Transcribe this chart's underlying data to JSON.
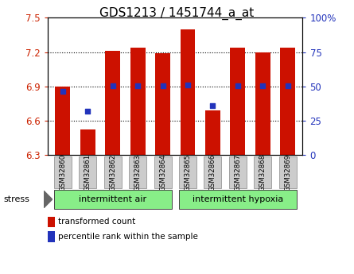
{
  "title": "GDS1213 / 1451744_a_at",
  "samples": [
    "GSM32860",
    "GSM32861",
    "GSM32862",
    "GSM32863",
    "GSM32864",
    "GSM32865",
    "GSM32866",
    "GSM32867",
    "GSM32868",
    "GSM32869"
  ],
  "bar_values": [
    6.9,
    6.52,
    7.21,
    7.24,
    7.19,
    7.4,
    6.69,
    7.24,
    7.2,
    7.24
  ],
  "percentile_values": [
    6.855,
    6.68,
    6.905,
    6.905,
    6.905,
    6.915,
    6.73,
    6.905,
    6.905,
    6.905
  ],
  "y_min": 6.3,
  "y_max": 7.5,
  "y_ticks": [
    6.3,
    6.6,
    6.9,
    7.2,
    7.5
  ],
  "right_y_ticks": [
    0,
    25,
    50,
    75,
    100
  ],
  "right_y_labels": [
    "0",
    "25",
    "50",
    "75",
    "100%"
  ],
  "bar_color": "#cc1100",
  "dot_color": "#2233bb",
  "group1_label": "intermittent air",
  "group2_label": "intermittent hypoxia",
  "group1_indices": [
    0,
    1,
    2,
    3,
    4
  ],
  "group2_indices": [
    5,
    6,
    7,
    8,
    9
  ],
  "group_bg_color": "#88ee88",
  "tick_label_bg": "#cccccc",
  "stress_label": "stress",
  "legend_bar_label": "transformed count",
  "legend_dot_label": "percentile rank within the sample",
  "left_tick_color": "#cc2200",
  "right_tick_color": "#2233bb",
  "title_fontsize": 11,
  "bar_width": 0.6
}
